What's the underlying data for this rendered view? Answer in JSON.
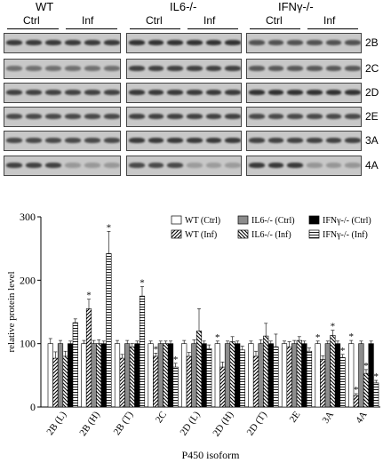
{
  "blot": {
    "groups": [
      {
        "title": "WT",
        "ctrl": "Ctrl",
        "inf": "Inf"
      },
      {
        "title": "IL6-/-",
        "ctrl": "Ctrl",
        "inf": "Inf"
      },
      {
        "title": "IFNγ-/-",
        "ctrl": "Ctrl",
        "inf": "Inf"
      }
    ],
    "isoforms": [
      "2B",
      "2C",
      "2D",
      "2E",
      "3A",
      "4A"
    ]
  },
  "chart_data": {
    "type": "bar",
    "xlabel": "P450 isoform",
    "ylabel": "relative protein level",
    "ylim": [
      0,
      300
    ],
    "yticks": [
      0,
      100,
      200,
      300
    ],
    "categories": [
      "2B (L)",
      "2B (H)",
      "2B (T)",
      "2C",
      "2D (L)",
      "2D (H)",
      "2D (T)",
      "2E",
      "3A",
      "4A"
    ],
    "series": [
      {
        "name": "WT (Ctrl)",
        "fill": "white",
        "values": [
          100,
          100,
          100,
          100,
          100,
          100,
          100,
          100,
          100,
          100
        ],
        "errors": [
          8,
          5,
          5,
          4,
          5,
          4,
          4,
          4,
          4,
          5
        ]
      },
      {
        "name": "WT (Inf)",
        "fill": "diag",
        "values": [
          77,
          155,
          77,
          80,
          80,
          63,
          80,
          95,
          75,
          18
        ],
        "errors": [
          10,
          15,
          6,
          5,
          6,
          8,
          8,
          8,
          6,
          3
        ]
      },
      {
        "name": "IL6-/- (Ctrl)",
        "fill": "gray",
        "values": [
          100,
          100,
          100,
          100,
          100,
          100,
          100,
          100,
          100,
          100
        ],
        "errors": [
          5,
          5,
          5,
          4,
          6,
          4,
          6,
          5,
          4,
          4
        ]
      },
      {
        "name": "IL6-/- (Inf)",
        "fill": "backdiag",
        "values": [
          80,
          100,
          95,
          100,
          120,
          103,
          112,
          105,
          113,
          53
        ],
        "errors": [
          8,
          6,
          5,
          4,
          35,
          8,
          20,
          6,
          8,
          6
        ]
      },
      {
        "name": "IFNγ-/- (Ctrl)",
        "fill": "black",
        "values": [
          100,
          100,
          100,
          100,
          100,
          100,
          100,
          100,
          100,
          100
        ],
        "errors": [
          4,
          4,
          4,
          4,
          4,
          4,
          4,
          4,
          4,
          4
        ]
      },
      {
        "name": "IFNγ-/- (Inf)",
        "fill": "hlines",
        "values": [
          133,
          242,
          175,
          63,
          92,
          90,
          95,
          88,
          78,
          38
        ],
        "errors": [
          6,
          35,
          15,
          6,
          6,
          6,
          20,
          5,
          5,
          4
        ]
      }
    ],
    "significant": [
      [
        false,
        false,
        false,
        false,
        false,
        true,
        false,
        false,
        true,
        true
      ],
      [
        false,
        true,
        false,
        true,
        false,
        false,
        false,
        false,
        false,
        true
      ],
      [
        false,
        false,
        false,
        false,
        false,
        false,
        false,
        false,
        false,
        false
      ],
      [
        false,
        false,
        false,
        false,
        false,
        false,
        false,
        false,
        true,
        true
      ],
      [
        false,
        false,
        false,
        false,
        false,
        false,
        false,
        false,
        false,
        false
      ],
      [
        false,
        true,
        true,
        true,
        false,
        false,
        false,
        false,
        true,
        true
      ]
    ],
    "star_symbol": "*"
  }
}
